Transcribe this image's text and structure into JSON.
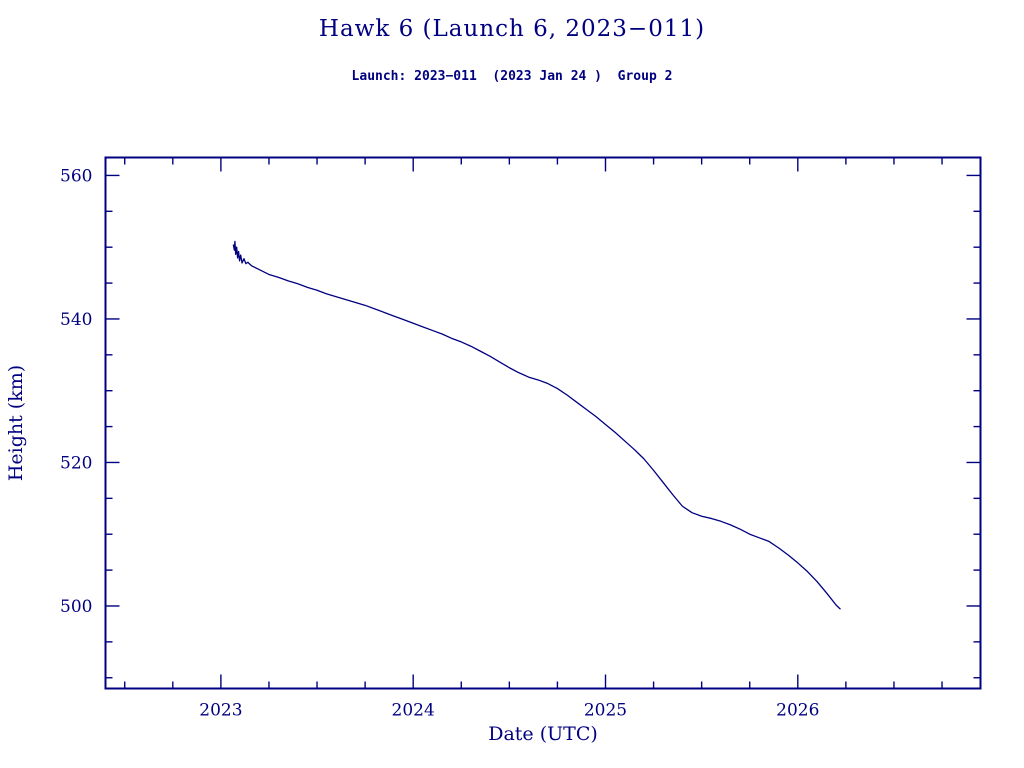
{
  "page": {
    "background": "#ffffff"
  },
  "header": {
    "title": "Hawk 6 (Launch 6, 2023−011)",
    "subtitle": "Launch: 2023−011  (2023 Jan 24 )  Group 2"
  },
  "chart_data": {
    "type": "line",
    "title": "Hawk 6 (Launch 6, 2023−011)",
    "subtitle": "Launch: 2023−011  (2023 Jan 24 )  Group 2",
    "xlabel": "Date (UTC)",
    "ylabel": "Height (km)",
    "xlim": [
      2022.4,
      2026.95
    ],
    "ylim": [
      488.5,
      562.5
    ],
    "x_ticks": [
      2023,
      2024,
      2025,
      2026
    ],
    "y_ticks": [
      500,
      520,
      540,
      560
    ],
    "x_minor_step": 0.25,
    "y_minor_step": 5,
    "grid": false,
    "legend": "none",
    "frame_color": "#000080",
    "line_color": "#000080",
    "series": [
      {
        "name": "Hawk 6 height (km)",
        "points": [
          [
            2023.065,
            550.3
          ],
          [
            2023.07,
            549.6
          ],
          [
            2023.073,
            550.8
          ],
          [
            2023.077,
            549.0
          ],
          [
            2023.082,
            550.0
          ],
          [
            2023.087,
            548.5
          ],
          [
            2023.092,
            549.4
          ],
          [
            2023.097,
            548.1
          ],
          [
            2023.103,
            548.9
          ],
          [
            2023.11,
            547.8
          ],
          [
            2023.12,
            548.4
          ],
          [
            2023.13,
            547.7
          ],
          [
            2023.14,
            547.9
          ],
          [
            2023.16,
            547.4
          ],
          [
            2023.19,
            547.0
          ],
          [
            2023.22,
            546.6
          ],
          [
            2023.25,
            546.2
          ],
          [
            2023.3,
            545.8
          ],
          [
            2023.35,
            545.3
          ],
          [
            2023.4,
            544.9
          ],
          [
            2023.45,
            544.4
          ],
          [
            2023.5,
            544.0
          ],
          [
            2023.55,
            543.5
          ],
          [
            2023.6,
            543.1
          ],
          [
            2023.65,
            542.7
          ],
          [
            2023.7,
            542.3
          ],
          [
            2023.75,
            541.9
          ],
          [
            2023.8,
            541.4
          ],
          [
            2023.85,
            540.9
          ],
          [
            2023.9,
            540.4
          ],
          [
            2023.95,
            539.9
          ],
          [
            2024.0,
            539.4
          ],
          [
            2024.05,
            538.9
          ],
          [
            2024.1,
            538.4
          ],
          [
            2024.15,
            537.9
          ],
          [
            2024.2,
            537.3
          ],
          [
            2024.25,
            536.8
          ],
          [
            2024.3,
            536.2
          ],
          [
            2024.35,
            535.5
          ],
          [
            2024.4,
            534.8
          ],
          [
            2024.45,
            534.0
          ],
          [
            2024.5,
            533.2
          ],
          [
            2024.55,
            532.5
          ],
          [
            2024.6,
            531.9
          ],
          [
            2024.65,
            531.5
          ],
          [
            2024.7,
            531.0
          ],
          [
            2024.75,
            530.3
          ],
          [
            2024.8,
            529.4
          ],
          [
            2024.85,
            528.4
          ],
          [
            2024.9,
            527.4
          ],
          [
            2024.95,
            526.4
          ],
          [
            2025.0,
            525.3
          ],
          [
            2025.05,
            524.2
          ],
          [
            2025.1,
            523.0
          ],
          [
            2025.15,
            521.8
          ],
          [
            2025.2,
            520.5
          ],
          [
            2025.25,
            518.9
          ],
          [
            2025.3,
            517.2
          ],
          [
            2025.35,
            515.5
          ],
          [
            2025.4,
            513.9
          ],
          [
            2025.45,
            513.0
          ],
          [
            2025.5,
            512.5
          ],
          [
            2025.55,
            512.2
          ],
          [
            2025.6,
            511.8
          ],
          [
            2025.65,
            511.3
          ],
          [
            2025.7,
            510.7
          ],
          [
            2025.75,
            510.0
          ],
          [
            2025.8,
            509.5
          ],
          [
            2025.85,
            509.0
          ],
          [
            2025.9,
            508.1
          ],
          [
            2025.95,
            507.1
          ],
          [
            2026.0,
            506.0
          ],
          [
            2026.05,
            504.8
          ],
          [
            2026.1,
            503.4
          ],
          [
            2026.15,
            501.8
          ],
          [
            2026.2,
            500.1
          ],
          [
            2026.22,
            499.6
          ]
        ]
      }
    ]
  }
}
